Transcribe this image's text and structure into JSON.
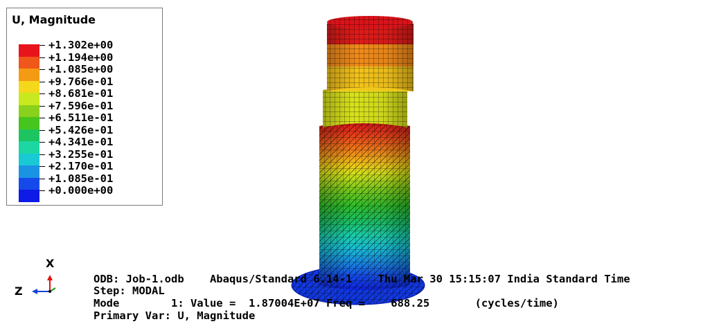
{
  "legend": {
    "title": "U, Magnitude",
    "levels": [
      {
        "label": "+1.302e+00",
        "color": "#e8141b"
      },
      {
        "label": "+1.194e+00",
        "color": "#f0571a"
      },
      {
        "label": "+1.085e+00",
        "color": "#f59a15"
      },
      {
        "label": "+9.766e-01",
        "color": "#f4d81c"
      },
      {
        "label": "+8.681e-01",
        "color": "#c8e81f"
      },
      {
        "label": "+7.596e-01",
        "color": "#89d11c"
      },
      {
        "label": "+6.511e-01",
        "color": "#47c51f"
      },
      {
        "label": "+5.426e-01",
        "color": "#1dc560"
      },
      {
        "label": "+4.341e-01",
        "color": "#1cd7a2"
      },
      {
        "label": "+3.255e-01",
        "color": "#19c9d4"
      },
      {
        "label": "+2.170e-01",
        "color": "#1a93e3"
      },
      {
        "label": "+1.085e-01",
        "color": "#1649ea"
      },
      {
        "label": "+0.000e+00",
        "color": "#0e1ae6"
      }
    ]
  },
  "triad": {
    "x_label": "X",
    "z_label": "Z"
  },
  "info": {
    "line1": "ODB: Job-1.odb    Abaqus/Standard 6.14-1    Thu Mar 30 15:15:07 India Standard Time",
    "line2": "Step: MODAL",
    "line3": "Mode        1: Value =  1.87004E+07 Freq =    688.25       (cycles/time)",
    "line4": "Primary Var: U, Magnitude"
  }
}
